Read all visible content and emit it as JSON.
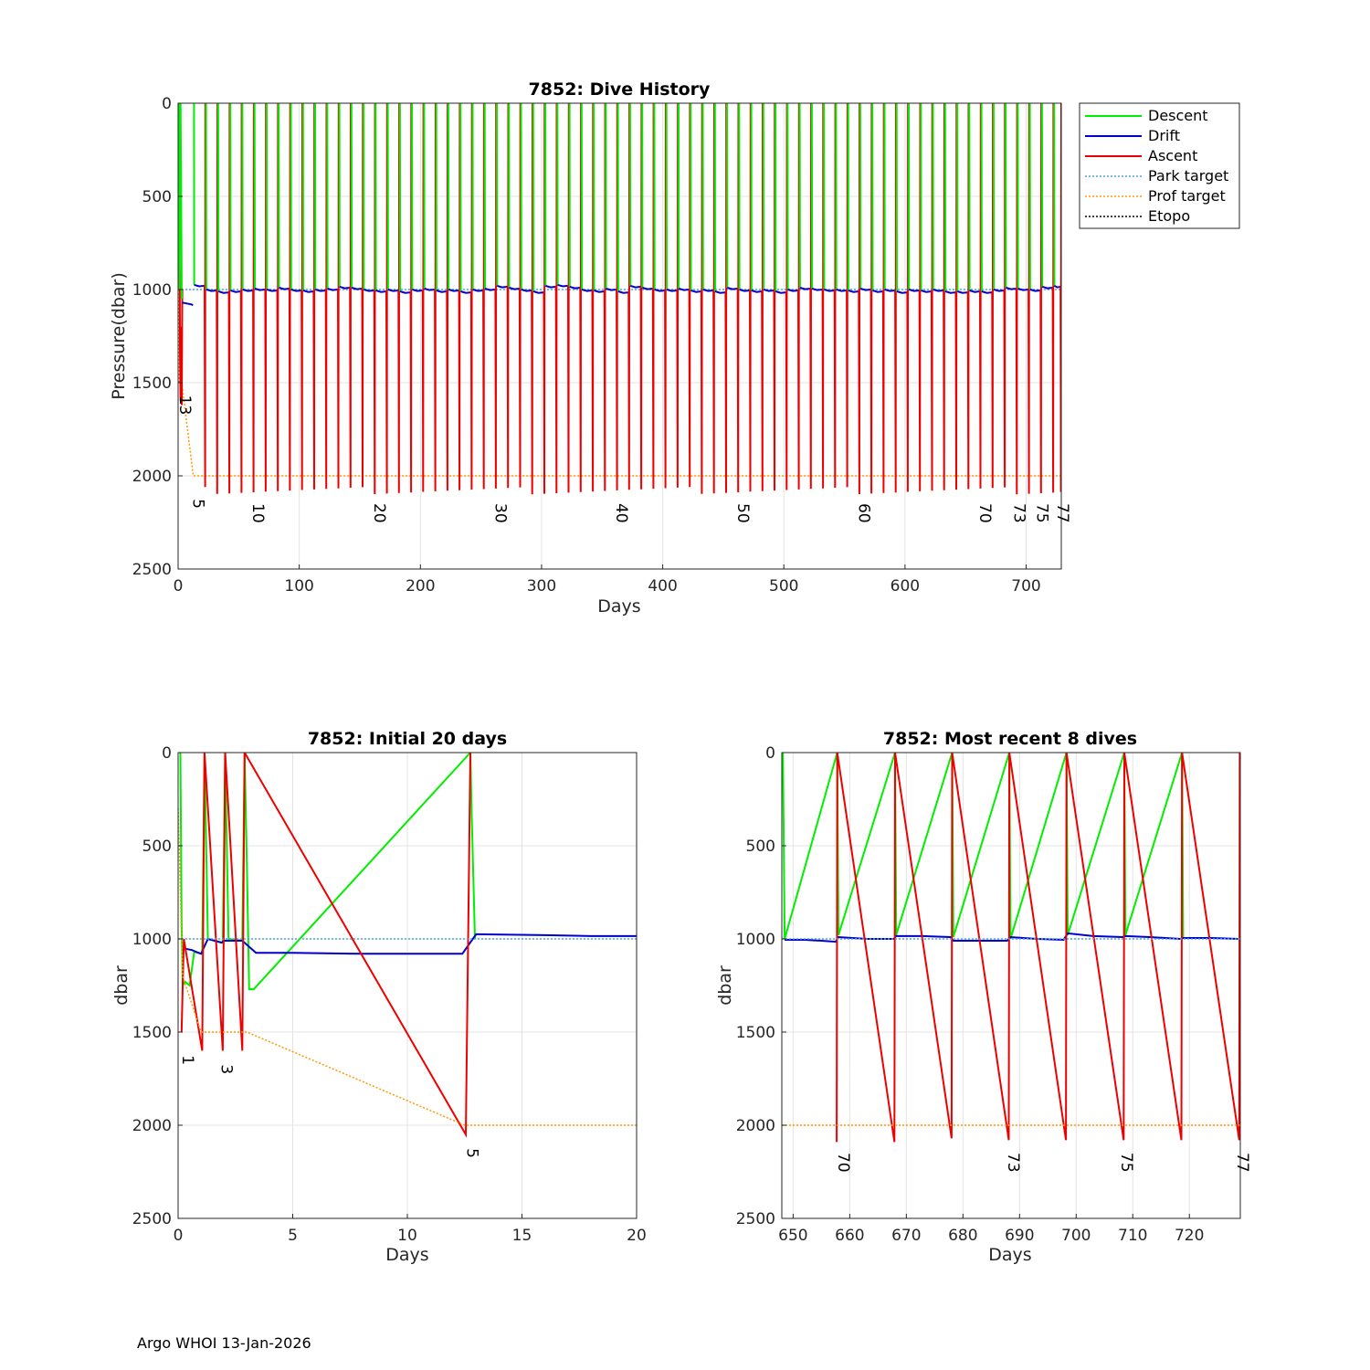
{
  "footer": "Argo WHOI 13-Jan-2026",
  "legend": [
    {
      "label": "Descent",
      "color": "#00ee00",
      "style": "solid"
    },
    {
      "label": "Drift",
      "color": "#0000cc",
      "style": "solid"
    },
    {
      "label": "Ascent",
      "color": "#ee0000",
      "style": "solid"
    },
    {
      "label": "Park target",
      "color": "#4da6d9",
      "style": "dotted"
    },
    {
      "label": "Prof target",
      "color": "#ff9900",
      "style": "dotted"
    },
    {
      "label": "Etopo",
      "color": "#000000",
      "style": "dotted"
    }
  ],
  "chart_data": [
    {
      "id": "history",
      "type": "line",
      "title": "7852: Dive History",
      "xlabel": "Days",
      "ylabel": "Pressure(dbar)",
      "xlim": [
        0,
        729
      ],
      "ylim": [
        0,
        2500
      ],
      "y_reversed": true,
      "xticks": [
        0,
        100,
        200,
        300,
        400,
        500,
        600,
        700
      ],
      "yticks": [
        0,
        500,
        1000,
        1500,
        2000,
        2500
      ],
      "grid": true,
      "legend_position": "outside-top-right",
      "series": [
        {
          "name": "Descent",
          "description": "surface to ~1000 dbar park at start of each cycle"
        },
        {
          "name": "Drift",
          "description": "park depth ~1000 dbar (initially ~1080 dbar)"
        },
        {
          "name": "Ascent",
          "description": "~2080 dbar profile depth to surface"
        },
        {
          "name": "Park target",
          "value": 1000
        },
        {
          "name": "Prof target",
          "values": [
            {
              "x": 0,
              "y": 1000
            },
            {
              "x": 1,
              "y": 1500
            },
            {
              "x": 3,
              "y": 1500
            },
            {
              "x": 12.5,
              "y": 2000
            },
            {
              "x": 729,
              "y": 2000
            }
          ]
        }
      ],
      "cycle_days": [
        12.5,
        22.5,
        32.5,
        42.5,
        52.5,
        62.5,
        72.5,
        82.5,
        92.5,
        102.5,
        112.5,
        122.5,
        132.5,
        142.5,
        152.5,
        162.5,
        172.5,
        182.5,
        192.5,
        202.5,
        212.5,
        222.5,
        232.5,
        242.5,
        252.5,
        262.5,
        272.5,
        282.5,
        292.5,
        302.5,
        312.5,
        322.5,
        332.5,
        342.5,
        352.5,
        362.5,
        372.5,
        382.5,
        392.5,
        402.5,
        412.5,
        422.5,
        432.5,
        442.5,
        452.5,
        462.5,
        472.5,
        482.5,
        492.5,
        502.5,
        512.5,
        522.5,
        532.5,
        542.5,
        552.5,
        562.5,
        572.5,
        582.5,
        592.5,
        602.5,
        612.5,
        622.5,
        632.5,
        642.5,
        652.5,
        662.5,
        672.5,
        682.5,
        692.5,
        702.5,
        712.5,
        722.5,
        729
      ],
      "dive_labels": [
        {
          "label": "13",
          "x": 1.5,
          "y": 1620
        },
        {
          "label": "5",
          "x": 12.5,
          "y": 2150
        },
        {
          "label": "10",
          "x": 62,
          "y": 2200
        },
        {
          "label": "20",
          "x": 162,
          "y": 2200
        },
        {
          "label": "30",
          "x": 262,
          "y": 2200
        },
        {
          "label": "40",
          "x": 362,
          "y": 2200
        },
        {
          "label": "50",
          "x": 462,
          "y": 2200
        },
        {
          "label": "60",
          "x": 562,
          "y": 2200
        },
        {
          "label": "70",
          "x": 662,
          "y": 2200
        },
        {
          "label": "73",
          "x": 690,
          "y": 2200
        },
        {
          "label": "75",
          "x": 709,
          "y": 2200
        },
        {
          "label": "77",
          "x": 726,
          "y": 2200
        }
      ]
    },
    {
      "id": "initial",
      "type": "line",
      "title": "7852: Initial 20 days",
      "xlabel": "Days",
      "ylabel": "dbar",
      "xlim": [
        0,
        20
      ],
      "ylim": [
        0,
        2500
      ],
      "y_reversed": true,
      "xticks": [
        0,
        5,
        10,
        15,
        20
      ],
      "yticks": [
        0,
        500,
        1000,
        1500,
        2000,
        2500
      ],
      "grid": true,
      "series": [
        {
          "name": "Descent",
          "values": [
            {
              "x": 0.05,
              "y": 0
            },
            {
              "x": 0.1,
              "y": 0
            },
            {
              "x": 0.15,
              "y": 900
            },
            {
              "x": 0.2,
              "y": 1250
            },
            {
              "x": 0.3,
              "y": 1230
            },
            {
              "x": 0.5,
              "y": 1250
            },
            {
              "x": 0.7,
              "y": 1070
            },
            {
              "x": 1.05,
              "y": 1080
            },
            {
              "x": 1.15,
              "y": 0
            },
            {
              "x": 1.3,
              "y": 1000
            },
            {
              "x": 1.6,
              "y": 1010
            },
            {
              "x": 1.95,
              "y": 1020
            },
            {
              "x": 2.05,
              "y": 0
            },
            {
              "x": 2.2,
              "y": 1000
            },
            {
              "x": 2.8,
              "y": 1010
            },
            {
              "x": 2.9,
              "y": 0
            },
            {
              "x": 3.0,
              "y": 600
            },
            {
              "x": 3.1,
              "y": 1270
            },
            {
              "x": 3.3,
              "y": 1270
            },
            {
              "x": 12.75,
              "y": 0
            },
            {
              "x": 12.8,
              "y": 300
            },
            {
              "x": 12.95,
              "y": 1000
            }
          ]
        },
        {
          "name": "Drift",
          "values": [
            {
              "x": 0.2,
              "y": 1050
            },
            {
              "x": 0.6,
              "y": 1060
            },
            {
              "x": 0.8,
              "y": 1070
            },
            {
              "x": 1.0,
              "y": 1080
            },
            {
              "x": 1.3,
              "y": 1000
            },
            {
              "x": 1.9,
              "y": 1020
            },
            {
              "x": 2.0,
              "y": 1010
            },
            {
              "x": 2.8,
              "y": 1010
            },
            {
              "x": 3.4,
              "y": 1075
            },
            {
              "x": 5,
              "y": 1075
            },
            {
              "x": 8,
              "y": 1080
            },
            {
              "x": 12.4,
              "y": 1080
            },
            {
              "x": 13.0,
              "y": 975
            },
            {
              "x": 16,
              "y": 980
            },
            {
              "x": 18,
              "y": 985
            },
            {
              "x": 20,
              "y": 985
            }
          ]
        },
        {
          "name": "Ascent",
          "values": [
            {
              "x": 0.15,
              "y": 1500
            },
            {
              "x": 0.25,
              "y": 1000
            },
            {
              "x": 1.05,
              "y": 1600
            },
            {
              "x": 1.15,
              "y": 0
            },
            {
              "x": 1.95,
              "y": 1600
            },
            {
              "x": 2.05,
              "y": 0
            },
            {
              "x": 2.8,
              "y": 1600
            },
            {
              "x": 2.9,
              "y": 0
            },
            {
              "x": 12.55,
              "y": 2050
            },
            {
              "x": 12.75,
              "y": 0
            }
          ]
        },
        {
          "name": "Park target",
          "value": 1000
        },
        {
          "name": "Prof target",
          "values": [
            {
              "x": 0,
              "y": 300
            },
            {
              "x": 0.2,
              "y": 1200
            },
            {
              "x": 1,
              "y": 1500
            },
            {
              "x": 3,
              "y": 1500
            },
            {
              "x": 12.5,
              "y": 2000
            },
            {
              "x": 20,
              "y": 2000
            }
          ]
        }
      ],
      "dive_labels": [
        {
          "label": "1",
          "x": 0.2,
          "y": 1650
        },
        {
          "label": "3",
          "x": 1.9,
          "y": 1700
        },
        {
          "label": "5",
          "x": 12.6,
          "y": 2150
        }
      ]
    },
    {
      "id": "recent",
      "type": "line",
      "title": "7852: Most recent 8 dives",
      "xlabel": "Days",
      "ylabel": "dbar",
      "xlim": [
        648,
        729
      ],
      "ylim": [
        0,
        2500
      ],
      "y_reversed": true,
      "xticks": [
        650,
        660,
        670,
        680,
        690,
        700,
        710,
        720
      ],
      "yticks": [
        0,
        500,
        1000,
        1500,
        2000,
        2500
      ],
      "grid": true,
      "series": [
        {
          "name": "Descent",
          "values": [
            {
              "x": 648.2,
              "y": 0
            },
            {
              "x": 648.5,
              "y": 1000
            },
            {
              "x": 657.8,
              "y": 0
            },
            {
              "x": 658.0,
              "y": 980
            },
            {
              "x": 668.0,
              "y": 0
            },
            {
              "x": 668.2,
              "y": 980
            },
            {
              "x": 678.1,
              "y": 0
            },
            {
              "x": 678.3,
              "y": 990
            },
            {
              "x": 688.2,
              "y": 0
            },
            {
              "x": 688.4,
              "y": 1000
            },
            {
              "x": 698.3,
              "y": 0
            },
            {
              "x": 698.5,
              "y": 980
            },
            {
              "x": 708.5,
              "y": 0
            },
            {
              "x": 708.7,
              "y": 980
            },
            {
              "x": 718.7,
              "y": 0
            },
            {
              "x": 718.9,
              "y": 990
            }
          ]
        },
        {
          "name": "Drift",
          "values": [
            {
              "x": 648.5,
              "y": 1005
            },
            {
              "x": 652,
              "y": 1005
            },
            {
              "x": 655,
              "y": 1010
            },
            {
              "x": 657.5,
              "y": 1015
            },
            {
              "x": 658.0,
              "y": 990
            },
            {
              "x": 663,
              "y": 1000
            },
            {
              "x": 667.8,
              "y": 1000
            },
            {
              "x": 668.2,
              "y": 985
            },
            {
              "x": 673,
              "y": 985
            },
            {
              "x": 677.8,
              "y": 990
            },
            {
              "x": 678.3,
              "y": 1010
            },
            {
              "x": 683,
              "y": 1010
            },
            {
              "x": 687.8,
              "y": 1010
            },
            {
              "x": 688.4,
              "y": 990
            },
            {
              "x": 693,
              "y": 1000
            },
            {
              "x": 697.8,
              "y": 1005
            },
            {
              "x": 698.5,
              "y": 970
            },
            {
              "x": 703,
              "y": 985
            },
            {
              "x": 708.2,
              "y": 990
            },
            {
              "x": 708.7,
              "y": 985
            },
            {
              "x": 713,
              "y": 990
            },
            {
              "x": 718.4,
              "y": 1000
            },
            {
              "x": 718.9,
              "y": 995
            },
            {
              "x": 724,
              "y": 995
            },
            {
              "x": 728.6,
              "y": 1000
            }
          ]
        },
        {
          "name": "Ascent",
          "values": [
            {
              "x": 657.7,
              "y": 2090
            },
            {
              "x": 657.8,
              "y": 0
            },
            {
              "x": 667.9,
              "y": 2090
            },
            {
              "x": 668.0,
              "y": 0
            },
            {
              "x": 678.0,
              "y": 2070
            },
            {
              "x": 678.1,
              "y": 0
            },
            {
              "x": 688.1,
              "y": 2080
            },
            {
              "x": 688.2,
              "y": 0
            },
            {
              "x": 698.2,
              "y": 2080
            },
            {
              "x": 698.3,
              "y": 0
            },
            {
              "x": 708.4,
              "y": 2080
            },
            {
              "x": 708.5,
              "y": 0
            },
            {
              "x": 718.6,
              "y": 2080
            },
            {
              "x": 718.7,
              "y": 0
            },
            {
              "x": 728.8,
              "y": 2080
            },
            {
              "x": 728.9,
              "y": 0
            }
          ]
        },
        {
          "name": "Park target",
          "value": 1000
        },
        {
          "name": "Prof target",
          "value": 2000
        }
      ],
      "dive_labels": [
        {
          "label": "70",
          "x": 658,
          "y": 2200
        },
        {
          "label": "73",
          "x": 688,
          "y": 2200
        },
        {
          "label": "75",
          "x": 708,
          "y": 2200
        },
        {
          "label": "77",
          "x": 728.5,
          "y": 2200
        }
      ]
    }
  ]
}
